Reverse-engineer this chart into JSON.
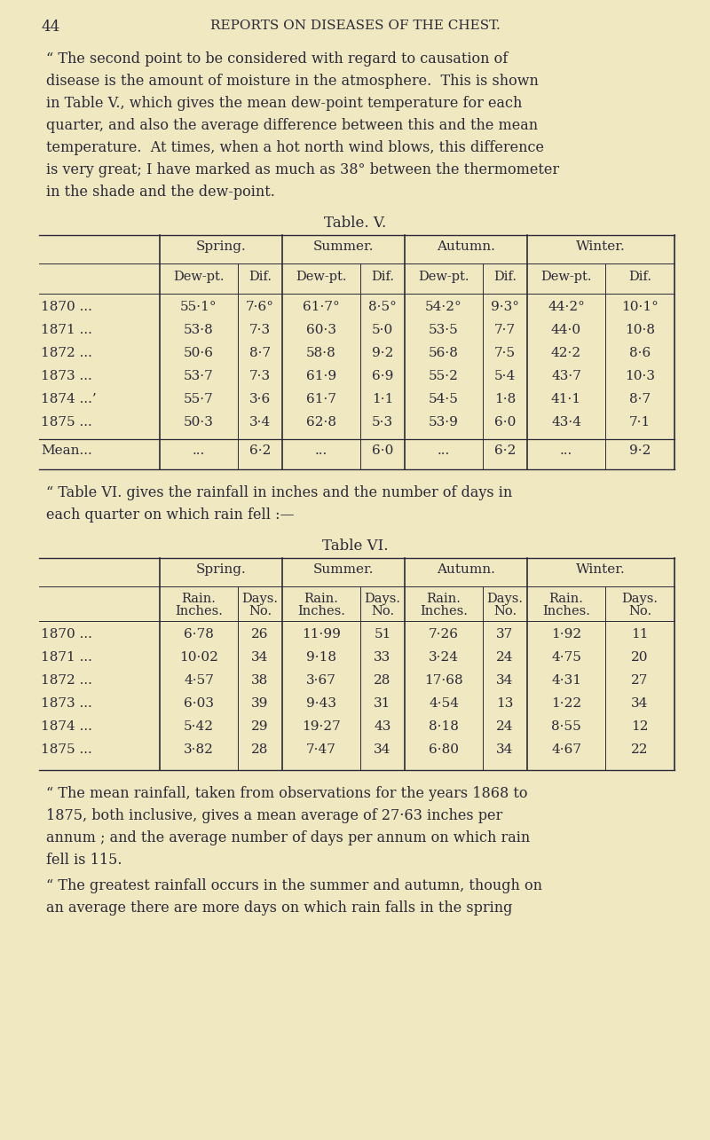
{
  "bg_color": "#f0e8c0",
  "text_color": "#2a2a3a",
  "page_number": "44",
  "page_header": "REPORTS ON DISEASES OF THE CHEST.",
  "table5_title": "Table. V.",
  "table5_seasons": [
    "Spring.",
    "Summer.",
    "Autumn.",
    "Winter."
  ],
  "table5_subcols": [
    "Dew-pt.",
    "Dif.",
    "Dew-pt.",
    "Dif.",
    "Dew-pt.",
    "Dif.",
    "Dew-pt.",
    "Dif."
  ],
  "table5_years": [
    "1870 ...",
    "1871 ...",
    "1872 ...",
    "1873 ...",
    "1874 ...’",
    "1875 ..."
  ],
  "table5_data": [
    [
      "55·1°",
      "7·6°",
      "61·7°",
      "8·5°",
      "54·2°",
      "9·3°",
      "44·2°",
      "10·1°"
    ],
    [
      "53·8",
      "7·3",
      "60·3",
      "5·0",
      "53·5",
      "7·7",
      "44·0",
      "10·8"
    ],
    [
      "50·6",
      "8·7",
      "58·8",
      "9·2",
      "56·8",
      "7·5",
      "42·2",
      "8·6"
    ],
    [
      "53·7",
      "7·3",
      "61·9",
      "6·9",
      "55·2",
      "5·4",
      "43·7",
      "10·3"
    ],
    [
      "55·7",
      "3·6",
      "61·7",
      "1·1",
      "54·5",
      "1·8",
      "41·1",
      "8·7"
    ],
    [
      "50·3",
      "3·4",
      "62·8",
      "5·3",
      "53·9",
      "6·0",
      "43·4",
      "7·1"
    ]
  ],
  "table5_mean_label": "Mean...",
  "table5_mean_row": [
    "...",
    "6·2",
    "...",
    "6·0",
    "...",
    "6·2",
    "...",
    "9·2"
  ],
  "table6_title": "Table VI.",
  "table6_seasons": [
    "Spring.",
    "Summer.",
    "Autumn.",
    "Winter."
  ],
  "table6_years": [
    "1870 ...",
    "1871 ...",
    "1872 ...",
    "1873 ...",
    "1874 ...",
    "1875 ..."
  ],
  "table6_data": [
    [
      "6·78",
      "26",
      "11·99",
      "51",
      "7·26",
      "37",
      "1·92",
      "11"
    ],
    [
      "10·02",
      "34",
      "9·18",
      "33",
      "3·24",
      "24",
      "4·75",
      "20"
    ],
    [
      "4·57",
      "38",
      "3·67",
      "28",
      "17·68",
      "34",
      "4·31",
      "27"
    ],
    [
      "6·03",
      "39",
      "9·43",
      "31",
      "4·54",
      "13",
      "1·22",
      "34"
    ],
    [
      "5·42",
      "29",
      "19·27",
      "43",
      "8·18",
      "24",
      "8·55",
      "12"
    ],
    [
      "3·82",
      "28",
      "7·47",
      "34",
      "6·80",
      "34",
      "4·67",
      "22"
    ]
  ],
  "intro_lines": [
    "“ The second point to be considered with regard to causation of",
    "disease is the amount of moisture in the atmosphere.  This is shown",
    "in Table V., which gives the mean dew-point temperature for each",
    "quarter, and also the average difference between this and the mean",
    "temperature.  At times, when a hot north wind blows, this difference",
    "is very great; I have marked as much as 38° between the thermometer",
    "in the shade and the dew-point."
  ],
  "inter_lines": [
    "“ Table VI. gives the rainfall in inches and the number of days in",
    "each quarter on which rain fell :—"
  ],
  "close1_lines": [
    "“ The mean rainfall, taken from observations for the years 1868 to",
    "1875, both inclusive, gives a mean average of 27·63 inches per",
    "annum ; and the average number of days per annum on which rain",
    "fell is 115."
  ],
  "close2_lines": [
    "“ The greatest rainfall occurs in the summer and autumn, though on",
    "an average there are more days on which rain falls in the spring"
  ]
}
